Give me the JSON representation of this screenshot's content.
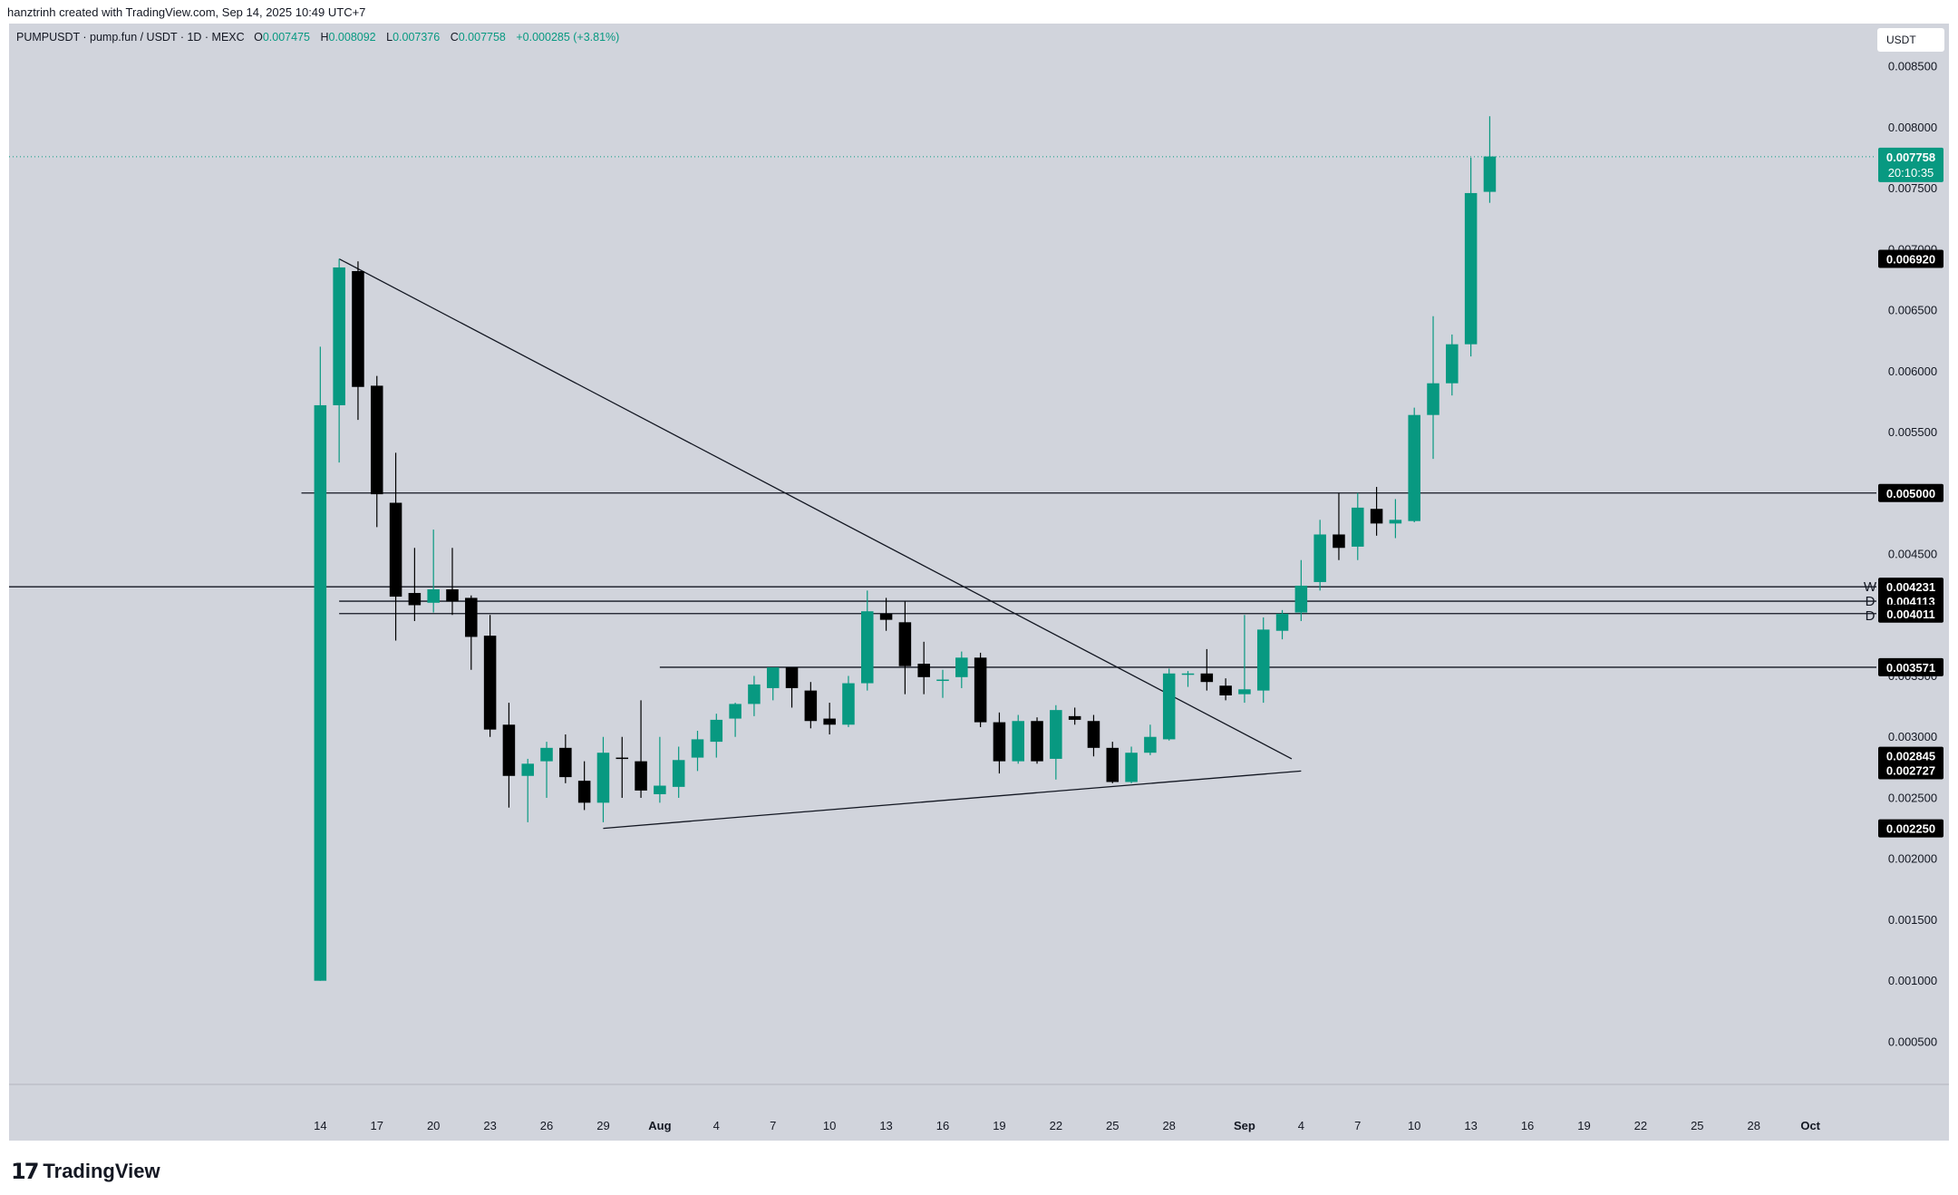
{
  "header": {
    "credit": "hanztrinh created with TradingView.com, Sep 14, 2025 10:49 UTC+7"
  },
  "symbol": {
    "description": "PUMPUSDT · pump.fun / USDT · 1D · MEXC",
    "open_label": "O",
    "open": "0.007475",
    "high_label": "H",
    "high": "0.008092",
    "low_label": "L",
    "low": "0.007376",
    "close_label": "C",
    "close": "0.007758",
    "change": "+0.000285 (+3.81%)"
  },
  "currency_button": "USDT",
  "footer": {
    "brand": "TradingView"
  },
  "colors": {
    "up": "#089981",
    "down": "#000000",
    "background": "#d1d4dc",
    "label_bg": "#000000"
  },
  "icons": {
    "logo": "tradingview-logo-icon"
  },
  "chart_data": {
    "type": "candlestick",
    "y_axis": {
      "ticks": [
        "0.000500",
        "0.001000",
        "0.001500",
        "0.002000",
        "0.002500",
        "0.003000",
        "0.003500",
        "0.004000",
        "0.004500",
        "0.005000",
        "0.005500",
        "0.006000",
        "0.006500",
        "0.007000",
        "0.007500",
        "0.008000",
        "0.008500"
      ],
      "range": [
        0.00015,
        0.00885
      ]
    },
    "x_axis": {
      "ticks": [
        {
          "i": 0,
          "label": "14",
          "bold": false
        },
        {
          "i": 3,
          "label": "17",
          "bold": false
        },
        {
          "i": 6,
          "label": "20",
          "bold": false
        },
        {
          "i": 9,
          "label": "23",
          "bold": false
        },
        {
          "i": 12,
          "label": "26",
          "bold": false
        },
        {
          "i": 15,
          "label": "29",
          "bold": false
        },
        {
          "i": 18,
          "label": "Aug",
          "bold": true
        },
        {
          "i": 21,
          "label": "4",
          "bold": false
        },
        {
          "i": 24,
          "label": "7",
          "bold": false
        },
        {
          "i": 27,
          "label": "10",
          "bold": false
        },
        {
          "i": 30,
          "label": "13",
          "bold": false
        },
        {
          "i": 33,
          "label": "16",
          "bold": false
        },
        {
          "i": 36,
          "label": "19",
          "bold": false
        },
        {
          "i": 39,
          "label": "22",
          "bold": false
        },
        {
          "i": 42,
          "label": "25",
          "bold": false
        },
        {
          "i": 45,
          "label": "28",
          "bold": false
        },
        {
          "i": 49,
          "label": "Sep",
          "bold": true
        },
        {
          "i": 52,
          "label": "4",
          "bold": false
        },
        {
          "i": 55,
          "label": "7",
          "bold": false
        },
        {
          "i": 58,
          "label": "10",
          "bold": false
        },
        {
          "i": 61,
          "label": "13",
          "bold": false
        },
        {
          "i": 64,
          "label": "16",
          "bold": false
        },
        {
          "i": 67,
          "label": "19",
          "bold": false
        },
        {
          "i": 70,
          "label": "22",
          "bold": false
        },
        {
          "i": 73,
          "label": "25",
          "bold": false
        },
        {
          "i": 76,
          "label": "28",
          "bold": false
        },
        {
          "i": 79,
          "label": "Oct",
          "bold": true
        }
      ],
      "index_range": [
        -16.5,
        82.5
      ]
    },
    "candles": [
      {
        "o": 0.001,
        "h": 0.0062,
        "l": 0.001,
        "c": 0.00572
      },
      {
        "o": 0.00572,
        "h": 0.00692,
        "l": 0.00525,
        "c": 0.00685
      },
      {
        "o": 0.00682,
        "h": 0.0069,
        "l": 0.0056,
        "c": 0.00587
      },
      {
        "o": 0.00588,
        "h": 0.00596,
        "l": 0.00472,
        "c": 0.00499
      },
      {
        "o": 0.00492,
        "h": 0.00533,
        "l": 0.00379,
        "c": 0.00415
      },
      {
        "o": 0.00418,
        "h": 0.00455,
        "l": 0.00395,
        "c": 0.00408
      },
      {
        "o": 0.0041,
        "h": 0.0047,
        "l": 0.00402,
        "c": 0.00421
      },
      {
        "o": 0.00421,
        "h": 0.00455,
        "l": 0.004,
        "c": 0.00411
      },
      {
        "o": 0.00414,
        "h": 0.00416,
        "l": 0.00355,
        "c": 0.00382
      },
      {
        "o": 0.00383,
        "h": 0.004,
        "l": 0.003,
        "c": 0.00306
      },
      {
        "o": 0.0031,
        "h": 0.00328,
        "l": 0.00242,
        "c": 0.00268
      },
      {
        "o": 0.00268,
        "h": 0.00282,
        "l": 0.0023,
        "c": 0.00278
      },
      {
        "o": 0.0028,
        "h": 0.00296,
        "l": 0.0025,
        "c": 0.00291
      },
      {
        "o": 0.00291,
        "h": 0.00302,
        "l": 0.00262,
        "c": 0.00267
      },
      {
        "o": 0.00264,
        "h": 0.0028,
        "l": 0.0024,
        "c": 0.00246
      },
      {
        "o": 0.00246,
        "h": 0.003,
        "l": 0.0023,
        "c": 0.00287
      },
      {
        "o": 0.00283,
        "h": 0.003,
        "l": 0.0025,
        "c": 0.00282
      },
      {
        "o": 0.0028,
        "h": 0.0033,
        "l": 0.0025,
        "c": 0.00256
      },
      {
        "o": 0.00253,
        "h": 0.003,
        "l": 0.00246,
        "c": 0.0026
      },
      {
        "o": 0.00259,
        "h": 0.00292,
        "l": 0.0025,
        "c": 0.00281
      },
      {
        "o": 0.00283,
        "h": 0.00305,
        "l": 0.00272,
        "c": 0.00298
      },
      {
        "o": 0.00296,
        "h": 0.00319,
        "l": 0.00283,
        "c": 0.00314
      },
      {
        "o": 0.00315,
        "h": 0.00328,
        "l": 0.003,
        "c": 0.00327
      },
      {
        "o": 0.00327,
        "h": 0.0035,
        "l": 0.00317,
        "c": 0.00343
      },
      {
        "o": 0.0034,
        "h": 0.00356,
        "l": 0.0033,
        "c": 0.00357
      },
      {
        "o": 0.00357,
        "h": 0.00357,
        "l": 0.00324,
        "c": 0.0034
      },
      {
        "o": 0.00338,
        "h": 0.00345,
        "l": 0.00307,
        "c": 0.00313
      },
      {
        "o": 0.00315,
        "h": 0.00328,
        "l": 0.00302,
        "c": 0.0031
      },
      {
        "o": 0.0031,
        "h": 0.0035,
        "l": 0.00308,
        "c": 0.00344
      },
      {
        "o": 0.00344,
        "h": 0.0042,
        "l": 0.00338,
        "c": 0.00403
      },
      {
        "o": 0.00401,
        "h": 0.00414,
        "l": 0.00387,
        "c": 0.00396
      },
      {
        "o": 0.00394,
        "h": 0.00411,
        "l": 0.00335,
        "c": 0.00358
      },
      {
        "o": 0.0036,
        "h": 0.00378,
        "l": 0.00335,
        "c": 0.00349
      },
      {
        "o": 0.00347,
        "h": 0.00355,
        "l": 0.00332,
        "c": 0.00347
      },
      {
        "o": 0.00349,
        "h": 0.0037,
        "l": 0.0034,
        "c": 0.00365
      },
      {
        "o": 0.00365,
        "h": 0.00369,
        "l": 0.00308,
        "c": 0.00312
      },
      {
        "o": 0.00312,
        "h": 0.0032,
        "l": 0.0027,
        "c": 0.0028
      },
      {
        "o": 0.0028,
        "h": 0.00318,
        "l": 0.00278,
        "c": 0.00313
      },
      {
        "o": 0.00313,
        "h": 0.00316,
        "l": 0.00278,
        "c": 0.0028
      },
      {
        "o": 0.00282,
        "h": 0.00326,
        "l": 0.00265,
        "c": 0.00322
      },
      {
        "o": 0.00317,
        "h": 0.00324,
        "l": 0.0031,
        "c": 0.00314
      },
      {
        "o": 0.00313,
        "h": 0.00318,
        "l": 0.00284,
        "c": 0.00291
      },
      {
        "o": 0.00291,
        "h": 0.00296,
        "l": 0.00262,
        "c": 0.00263
      },
      {
        "o": 0.00263,
        "h": 0.00292,
        "l": 0.00262,
        "c": 0.00287
      },
      {
        "o": 0.00287,
        "h": 0.0031,
        "l": 0.00285,
        "c": 0.003
      },
      {
        "o": 0.00298,
        "h": 0.00356,
        "l": 0.00297,
        "c": 0.00352
      },
      {
        "o": 0.00352,
        "h": 0.00354,
        "l": 0.00341,
        "c": 0.00352
      },
      {
        "o": 0.00352,
        "h": 0.00372,
        "l": 0.00338,
        "c": 0.00345
      },
      {
        "o": 0.00342,
        "h": 0.00348,
        "l": 0.0033,
        "c": 0.00334
      },
      {
        "o": 0.00335,
        "h": 0.004,
        "l": 0.00328,
        "c": 0.00339
      },
      {
        "o": 0.00338,
        "h": 0.00398,
        "l": 0.00328,
        "c": 0.00388
      },
      {
        "o": 0.00387,
        "h": 0.00404,
        "l": 0.0038,
        "c": 0.00401
      },
      {
        "o": 0.00402,
        "h": 0.00445,
        "l": 0.00395,
        "c": 0.00424
      },
      {
        "o": 0.00427,
        "h": 0.00478,
        "l": 0.0042,
        "c": 0.00466
      },
      {
        "o": 0.00466,
        "h": 0.005,
        "l": 0.00445,
        "c": 0.00455
      },
      {
        "o": 0.00456,
        "h": 0.005,
        "l": 0.00445,
        "c": 0.00488
      },
      {
        "o": 0.00487,
        "h": 0.00505,
        "l": 0.00465,
        "c": 0.00475
      },
      {
        "o": 0.00475,
        "h": 0.00495,
        "l": 0.00463,
        "c": 0.00478
      },
      {
        "o": 0.00477,
        "h": 0.0057,
        "l": 0.00476,
        "c": 0.00564
      },
      {
        "o": 0.00564,
        "h": 0.00645,
        "l": 0.00528,
        "c": 0.0059
      },
      {
        "o": 0.0059,
        "h": 0.0063,
        "l": 0.0058,
        "c": 0.00622
      },
      {
        "o": 0.00622,
        "h": 0.00775,
        "l": 0.00612,
        "c": 0.00746
      },
      {
        "o": 0.00747,
        "h": 0.00809,
        "l": 0.00738,
        "c": 0.00776
      }
    ],
    "horizontal_levels": [
      {
        "value": 0.005,
        "label": "0.005000",
        "tag": "",
        "from_index": -1,
        "to_edge": true
      },
      {
        "value": 0.004231,
        "label": "0.004231",
        "tag": "W",
        "from_index": -17,
        "to_edge": true
      },
      {
        "value": 0.004113,
        "label": "0.004113",
        "tag": "D",
        "from_index": 1,
        "to_edge": true
      },
      {
        "value": 0.004011,
        "label": "0.004011",
        "tag": "D",
        "from_index": 1,
        "to_edge": true
      },
      {
        "value": 0.003571,
        "label": "0.003571",
        "tag": "",
        "from_index": 18,
        "to_edge": true
      }
    ],
    "trendlines": [
      {
        "from": {
          "i": 1,
          "v": 0.00692
        },
        "to": {
          "i": 51.5,
          "v": 0.00282
        }
      },
      {
        "from": {
          "i": 15,
          "v": 0.00225
        },
        "to": {
          "i": 52,
          "v": 0.00272
        }
      }
    ],
    "price_labels": [
      "0.006920",
      "0.002845",
      "0.002727",
      "0.002250"
    ],
    "last_price": {
      "value": 0.007758,
      "label": "0.007758",
      "countdown": "20:10:35"
    }
  }
}
